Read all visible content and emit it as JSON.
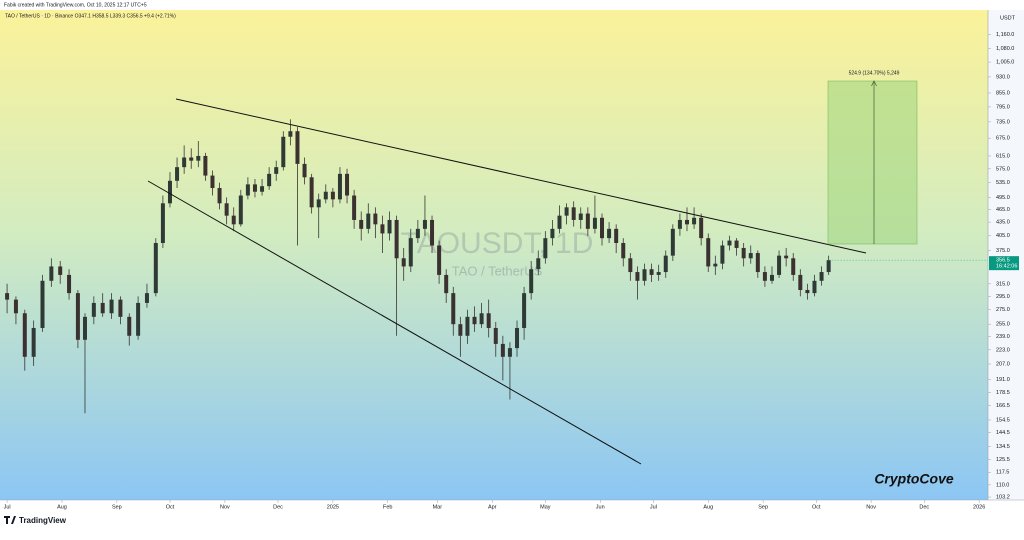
{
  "header": {
    "attribution": "Fabik created with TradingView.com, Oct 10, 2025 12:17 UTC+5"
  },
  "chart_data": {
    "type": "candlestick",
    "symbol_line": "TAO / TetherUS · 1D · Binance  O347.1 H358.5 L339.3 C356.5 +9.4 (+2.71%)",
    "watermark": "TAOUSDT, 1D",
    "watermark_sub": "TAO / TetherUS",
    "y_axis_label": "USDT",
    "log_scale": true,
    "ylim": [
      99,
      1320
    ],
    "yticks": [
      {
        "value": 1160,
        "label": "1,160.0"
      },
      {
        "value": 1080,
        "label": "1,080.0"
      },
      {
        "value": 1005,
        "label": "1,005.0"
      },
      {
        "value": 930,
        "label": "930.0"
      },
      {
        "value": 855,
        "label": "855.0"
      },
      {
        "value": 795,
        "label": "795.0"
      },
      {
        "value": 735,
        "label": "735.0"
      },
      {
        "value": 675,
        "label": "675.0"
      },
      {
        "value": 615,
        "label": "615.0"
      },
      {
        "value": 575,
        "label": "575.0"
      },
      {
        "value": 535,
        "label": "535.0"
      },
      {
        "value": 495,
        "label": "495.0"
      },
      {
        "value": 465,
        "label": "465.0"
      },
      {
        "value": 435,
        "label": "435.0"
      },
      {
        "value": 405,
        "label": "405.0"
      },
      {
        "value": 375,
        "label": "375.0"
      },
      {
        "value": 315,
        "label": "315.0"
      },
      {
        "value": 295,
        "label": "295.0"
      },
      {
        "value": 275,
        "label": "275.0"
      },
      {
        "value": 255,
        "label": "255.0"
      },
      {
        "value": 239,
        "label": "239.0"
      },
      {
        "value": 223,
        "label": "223.0"
      },
      {
        "value": 207,
        "label": "207.0"
      },
      {
        "value": 191,
        "label": "191.0"
      },
      {
        "value": 178.5,
        "label": "178.5"
      },
      {
        "value": 166.5,
        "label": "166.5"
      },
      {
        "value": 154.5,
        "label": "154.5"
      },
      {
        "value": 144.5,
        "label": "144.5"
      },
      {
        "value": 134.5,
        "label": "134.5"
      },
      {
        "value": 125.5,
        "label": "125.5"
      },
      {
        "value": 117.5,
        "label": "117.5"
      },
      {
        "value": 110,
        "label": "110.0"
      },
      {
        "value": 103.2,
        "label": "103.2"
      }
    ],
    "xlim": [
      -4,
      554
    ],
    "xticks": [
      {
        "value": 0,
        "label": "Jul"
      },
      {
        "value": 31,
        "label": "Aug"
      },
      {
        "value": 62,
        "label": "Sep"
      },
      {
        "value": 92,
        "label": "Oct"
      },
      {
        "value": 123,
        "label": "Nov"
      },
      {
        "value": 153,
        "label": "Dec"
      },
      {
        "value": 184,
        "label": "2025"
      },
      {
        "value": 215,
        "label": "Feb"
      },
      {
        "value": 243,
        "label": "Mar"
      },
      {
        "value": 274,
        "label": "Apr"
      },
      {
        "value": 304,
        "label": "May"
      },
      {
        "value": 335,
        "label": "Jun"
      },
      {
        "value": 365,
        "label": "Jul"
      },
      {
        "value": 396,
        "label": "Aug"
      },
      {
        "value": 427,
        "label": "Sep"
      },
      {
        "value": 457,
        "label": "Oct"
      },
      {
        "value": 488,
        "label": "Nov"
      },
      {
        "value": 518,
        "label": "Dec"
      },
      {
        "value": 549,
        "label": "2026"
      }
    ],
    "up_color": "#2f3a36",
    "down_color": "#3b3131",
    "x": [
      0,
      5,
      10,
      15,
      20,
      25,
      30,
      35,
      40,
      44,
      49,
      54,
      59,
      64,
      69,
      74,
      79,
      84,
      88,
      92,
      96,
      100,
      104,
      108,
      112,
      116,
      120,
      124,
      128,
      132,
      136,
      140,
      144,
      148,
      152,
      156,
      160,
      164,
      168,
      172,
      176,
      180,
      184,
      188,
      192,
      196,
      200,
      204,
      208,
      212,
      216,
      220,
      224,
      228,
      232,
      236,
      240,
      244,
      248,
      252,
      256,
      260,
      264,
      268,
      272,
      276,
      280,
      284,
      288,
      292,
      296,
      300,
      304,
      308,
      312,
      316,
      320,
      324,
      328,
      332,
      336,
      340,
      344,
      348,
      352,
      356,
      360,
      364,
      368,
      372,
      376,
      380,
      384,
      388,
      392,
      396,
      400,
      404,
      408,
      412,
      416,
      420,
      424,
      428,
      432,
      436,
      440,
      444,
      448,
      452,
      456,
      460,
      464
    ],
    "ohlc": [
      [
        300,
        315,
        270,
        290
      ],
      [
        290,
        295,
        255,
        270
      ],
      [
        270,
        275,
        200,
        215
      ],
      [
        215,
        260,
        205,
        250
      ],
      [
        250,
        330,
        245,
        320
      ],
      [
        320,
        360,
        310,
        345
      ],
      [
        345,
        355,
        315,
        330
      ],
      [
        330,
        340,
        290,
        300
      ],
      [
        300,
        305,
        225,
        235
      ],
      [
        235,
        270,
        160,
        265
      ],
      [
        265,
        295,
        255,
        285
      ],
      [
        285,
        300,
        265,
        270
      ],
      [
        270,
        300,
        262,
        290
      ],
      [
        290,
        295,
        255,
        265
      ],
      [
        265,
        270,
        228,
        240
      ],
      [
        240,
        295,
        235,
        285
      ],
      [
        285,
        315,
        278,
        300
      ],
      [
        300,
        400,
        295,
        390
      ],
      [
        390,
        500,
        380,
        480
      ],
      [
        480,
        565,
        470,
        540
      ],
      [
        540,
        610,
        520,
        580
      ],
      [
        580,
        650,
        560,
        610
      ],
      [
        610,
        640,
        575,
        600
      ],
      [
        600,
        665,
        580,
        615
      ],
      [
        615,
        625,
        540,
        555
      ],
      [
        555,
        570,
        500,
        520
      ],
      [
        520,
        535,
        465,
        480
      ],
      [
        480,
        495,
        430,
        450
      ],
      [
        450,
        470,
        415,
        430
      ],
      [
        430,
        515,
        425,
        500
      ],
      [
        500,
        550,
        490,
        530
      ],
      [
        530,
        545,
        495,
        510
      ],
      [
        510,
        545,
        500,
        525
      ],
      [
        525,
        580,
        515,
        560
      ],
      [
        560,
        600,
        540,
        580
      ],
      [
        580,
        700,
        570,
        680
      ],
      [
        680,
        745,
        650,
        700
      ],
      [
        700,
        715,
        385,
        590
      ],
      [
        590,
        610,
        530,
        550
      ],
      [
        550,
        560,
        455,
        470
      ],
      [
        470,
        505,
        400,
        490
      ],
      [
        490,
        530,
        480,
        510
      ],
      [
        510,
        520,
        470,
        490
      ],
      [
        490,
        580,
        480,
        560
      ],
      [
        560,
        575,
        480,
        500
      ],
      [
        500,
        515,
        420,
        440
      ],
      [
        440,
        460,
        395,
        420
      ],
      [
        420,
        480,
        410,
        455
      ],
      [
        455,
        470,
        400,
        430
      ],
      [
        430,
        450,
        370,
        410
      ],
      [
        410,
        460,
        395,
        440
      ],
      [
        440,
        450,
        240,
        360
      ],
      [
        360,
        380,
        320,
        345
      ],
      [
        345,
        420,
        335,
        400
      ],
      [
        400,
        440,
        390,
        420
      ],
      [
        420,
        500,
        405,
        440
      ],
      [
        440,
        450,
        370,
        385
      ],
      [
        385,
        395,
        315,
        330
      ],
      [
        330,
        340,
        285,
        300
      ],
      [
        300,
        310,
        240,
        255
      ],
      [
        255,
        265,
        215,
        240
      ],
      [
        240,
        275,
        230,
        265
      ],
      [
        265,
        280,
        245,
        255
      ],
      [
        255,
        285,
        250,
        270
      ],
      [
        270,
        290,
        238,
        250
      ],
      [
        250,
        258,
        215,
        230
      ],
      [
        230,
        240,
        190,
        215
      ],
      [
        215,
        232,
        172,
        225
      ],
      [
        225,
        260,
        215,
        250
      ],
      [
        250,
        310,
        235,
        300
      ],
      [
        300,
        355,
        290,
        340
      ],
      [
        340,
        375,
        330,
        360
      ],
      [
        360,
        415,
        350,
        400
      ],
      [
        400,
        440,
        385,
        420
      ],
      [
        420,
        475,
        410,
        450
      ],
      [
        450,
        480,
        430,
        470
      ],
      [
        470,
        485,
        425,
        440
      ],
      [
        440,
        470,
        420,
        455
      ],
      [
        455,
        470,
        405,
        420
      ],
      [
        420,
        500,
        410,
        445
      ],
      [
        445,
        455,
        385,
        400
      ],
      [
        400,
        435,
        390,
        420
      ],
      [
        420,
        430,
        370,
        390
      ],
      [
        390,
        400,
        345,
        360
      ],
      [
        360,
        370,
        320,
        335
      ],
      [
        335,
        345,
        290,
        320
      ],
      [
        320,
        350,
        312,
        340
      ],
      [
        340,
        350,
        318,
        330
      ],
      [
        330,
        348,
        320,
        335
      ],
      [
        335,
        375,
        325,
        365
      ],
      [
        365,
        430,
        355,
        420
      ],
      [
        420,
        455,
        405,
        440
      ],
      [
        440,
        470,
        415,
        430
      ],
      [
        430,
        470,
        420,
        445
      ],
      [
        445,
        455,
        385,
        400
      ],
      [
        400,
        410,
        335,
        345
      ],
      [
        345,
        365,
        330,
        350
      ],
      [
        350,
        395,
        340,
        385
      ],
      [
        385,
        405,
        375,
        395
      ],
      [
        395,
        400,
        365,
        380
      ],
      [
        380,
        390,
        345,
        360
      ],
      [
        360,
        385,
        350,
        370
      ],
      [
        370,
        375,
        325,
        335
      ],
      [
        335,
        345,
        310,
        320
      ],
      [
        320,
        345,
        315,
        330
      ],
      [
        330,
        375,
        325,
        365
      ],
      [
        365,
        380,
        345,
        360
      ],
      [
        360,
        370,
        320,
        330
      ],
      [
        330,
        340,
        295,
        305
      ],
      [
        305,
        315,
        290,
        300
      ],
      [
        300,
        330,
        295,
        320
      ],
      [
        320,
        345,
        312,
        335
      ],
      [
        335,
        365,
        330,
        356.5
      ]
    ],
    "last_price": 356.5,
    "countdown": "16:42:06",
    "annotation": "524.9 (134.70%) 5,249"
  },
  "branding": {
    "author_tag": "CryptoCove",
    "logo": "TradingView"
  }
}
